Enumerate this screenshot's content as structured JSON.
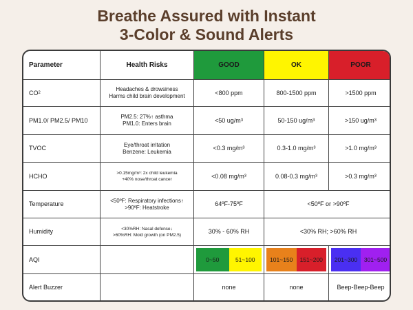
{
  "title": {
    "line1": "Breathe Assured with Instant",
    "line2": "3-Color & Sound Alerts"
  },
  "colors": {
    "good": "#1f9a3c",
    "ok": "#fff500",
    "poor": "#d81f2a",
    "aqi_green": "#1f9a3c",
    "aqi_yellow": "#fff500",
    "aqi_orange": "#e8811b",
    "aqi_red": "#d81f2a",
    "aqi_blue": "#4a2ff2",
    "aqi_purple": "#a020f0",
    "title": "#5a3e2b"
  },
  "header": {
    "parameter": "Parameter",
    "health_risks": "Health Risks",
    "good": "GOOD",
    "ok": "OK",
    "poor": "POOR"
  },
  "rows": {
    "co2": {
      "param_main": "CO",
      "param_sub": "2",
      "risk1": "Headaches & drowsiness",
      "risk2": "Harms child brain development",
      "good": "<800 ppm",
      "ok": "800-1500 ppm",
      "poor": ">1500 ppm"
    },
    "pm": {
      "param": "PM1.0/ PM2.5/ PM10",
      "risk1": "PM2.5: 27%↑ asthma",
      "risk2": "PM1.0: Enters brain",
      "good": "<50 ug/m",
      "ok": "50-150 ug/m",
      "poor": ">150 ug/m",
      "unit_sup": "3"
    },
    "tvoc": {
      "param": "TVOC",
      "risk1": "Eye/throat irritation",
      "risk2": "Benzene: Leukemia",
      "good": "<0.3 mg/m³",
      "ok": "0.3-1.0 mg/m³",
      "poor": ">1.0 mg/m³"
    },
    "hcho": {
      "param": "HCHO",
      "risk1": ">0.15mg/m³: 2x child leukemia",
      "risk2": "+40% nose/throat cancer",
      "good": "<0.08 mg/m³",
      "ok": "0.08-0.3 mg/m³",
      "poor": ">0.3 mg/m³"
    },
    "temperature": {
      "param": "Temperature",
      "risk1": "<50ºF: Respiratory infections↑",
      "risk2": ">90ºF: Heatstroke",
      "good": "64ºF-75ºF",
      "ok_poor": "<50ºF or >90ºF"
    },
    "humidity": {
      "param": "Humidity",
      "risk1": "<30%RH: Nasal defense↓",
      "risk2": ">60%RH: Mold growth (on PM2.5)",
      "good": "30% - 60% RH",
      "ok_poor": "<30% RH; >60% RH"
    },
    "aqi": {
      "param": "AQI",
      "good_a": "0~50",
      "good_b": "51~100",
      "ok_a": "101~150",
      "ok_b": "151~200",
      "poor_a": "201~300",
      "poor_b": "301~500"
    },
    "buzzer": {
      "param": "Alert Buzzer",
      "good": "none",
      "ok": "none",
      "poor": "Beep-Beep-Beep"
    }
  }
}
